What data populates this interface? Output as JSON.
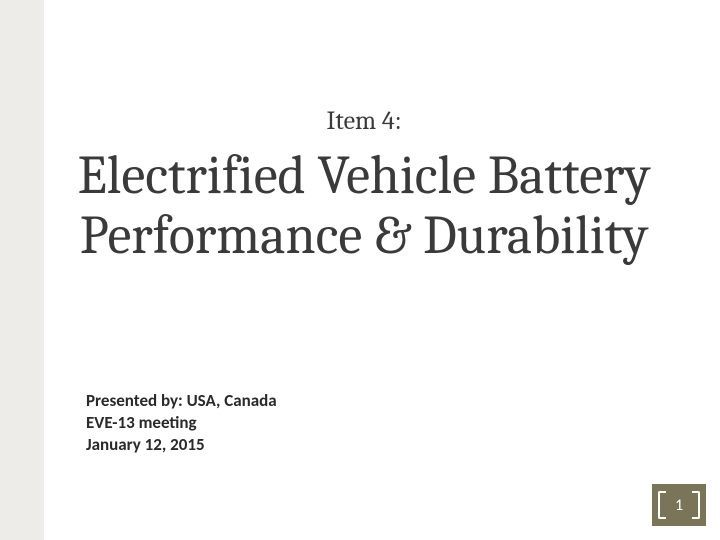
{
  "slide": {
    "item_label": "Item 4:",
    "title": "Electrified Vehicle Battery Performance & Durability",
    "presented_by": "Presented by: USA, Canada",
    "meeting": "EVE-13 meeting",
    "date": "January 12, 2015",
    "page_number": "1"
  },
  "style": {
    "left_bar_color": "#eeece8",
    "badge_color": "#7a7458",
    "text_color": "#3a3a3a",
    "background_color": "#ffffff",
    "title_fontsize": 54,
    "item_fontsize": 26,
    "meta_fontsize": 17
  }
}
